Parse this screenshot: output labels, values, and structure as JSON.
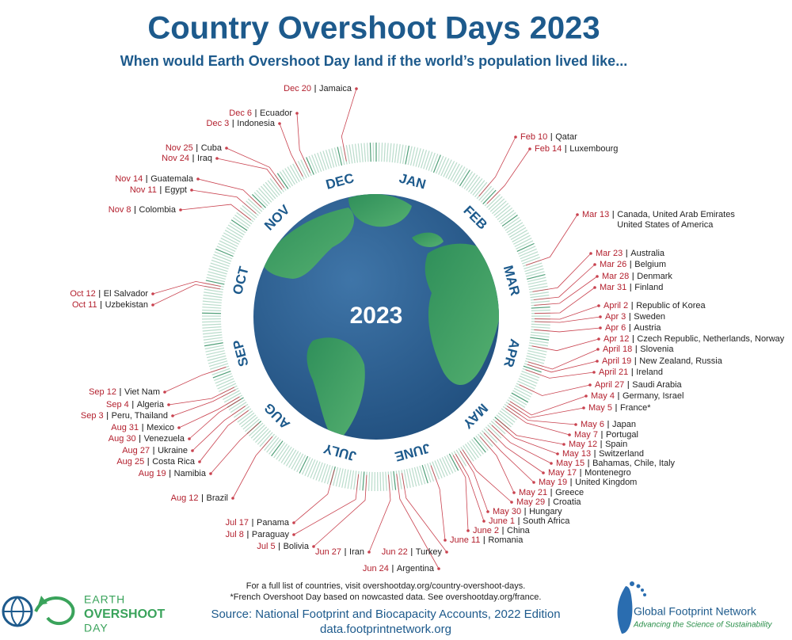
{
  "header": {
    "title": "Country Overshoot Days 2023",
    "subtitle": "When would Earth Overshoot Day land if the world’s population lived like..."
  },
  "ring": {
    "year": "2023",
    "months": [
      "JAN",
      "FEB",
      "MAR",
      "APR",
      "MAY",
      "JUNE",
      "JULY",
      "AUG",
      "SEP",
      "OCT",
      "NOV",
      "DEC"
    ]
  },
  "labels": [
    {
      "date": "Dec 20",
      "country": "Jamaica"
    },
    {
      "date": "Dec 6",
      "country": "Ecuador"
    },
    {
      "date": "Dec 3",
      "country": "Indonesia"
    },
    {
      "date": "Nov 25",
      "country": "Cuba"
    },
    {
      "date": "Nov 24",
      "country": "Iraq"
    },
    {
      "date": "Nov 14",
      "country": "Guatemala"
    },
    {
      "date": "Nov 11",
      "country": "Egypt"
    },
    {
      "date": "Nov 8",
      "country": "Colombia"
    },
    {
      "date": "Oct 12",
      "country": "El Salvador"
    },
    {
      "date": "Oct 11",
      "country": "Uzbekistan"
    },
    {
      "date": "Sep 12",
      "country": "Viet Nam"
    },
    {
      "date": "Sep 4",
      "country": "Algeria"
    },
    {
      "date": "Sep 3",
      "country": "Peru, Thailand"
    },
    {
      "date": "Aug 31",
      "country": "Mexico"
    },
    {
      "date": "Aug 30",
      "country": "Venezuela"
    },
    {
      "date": "Aug 27",
      "country": "Ukraine"
    },
    {
      "date": "Aug 25",
      "country": "Costa Rica"
    },
    {
      "date": "Aug 19",
      "country": "Namibia"
    },
    {
      "date": "Aug 12",
      "country": "Brazil"
    },
    {
      "date": "Jul 17",
      "country": "Panama"
    },
    {
      "date": "Jul 8",
      "country": "Paraguay"
    },
    {
      "date": "Jul 5",
      "country": "Bolivia"
    },
    {
      "date": "Jun 27",
      "country": "Iran"
    },
    {
      "date": "Jun 24",
      "country": "Argentina"
    },
    {
      "date": "Jun 22",
      "country": "Turkey"
    },
    {
      "date": "June 11",
      "country": "Romania"
    },
    {
      "date": "June 2",
      "country": "China"
    },
    {
      "date": "June 1",
      "country": "South Africa"
    },
    {
      "date": "May 30",
      "country": "Hungary"
    },
    {
      "date": "May 29",
      "country": "Croatia"
    },
    {
      "date": "May 21",
      "country": "Greece"
    },
    {
      "date": "May 19",
      "country": "United Kingdom"
    },
    {
      "date": "May 17",
      "country": "Montenegro"
    },
    {
      "date": "May 15",
      "country": "Bahamas, Chile, Italy"
    },
    {
      "date": "May 13",
      "country": "Switzerland"
    },
    {
      "date": "May 12",
      "country": "Spain"
    },
    {
      "date": "May 7",
      "country": "Portugal"
    },
    {
      "date": "May 6",
      "country": "Japan"
    },
    {
      "date": "May 5",
      "country": "France*"
    },
    {
      "date": "May 4",
      "country": "Germany, Israel"
    },
    {
      "date": "April 27",
      "country": "Saudi Arabia"
    },
    {
      "date": "April 21",
      "country": "Ireland"
    },
    {
      "date": "April 19",
      "country": "New Zealand, Russia"
    },
    {
      "date": "April 18",
      "country": "Slovenia"
    },
    {
      "date": "Apr 12",
      "country": "Czech Republic, Netherlands, Norway"
    },
    {
      "date": "Apr 6",
      "country": "Austria"
    },
    {
      "date": "Apr 3",
      "country": "Sweden"
    },
    {
      "date": "April 2",
      "country": "Republic of Korea"
    },
    {
      "date": "Mar 31",
      "country": "Finland"
    },
    {
      "date": "Mar 28",
      "country": "Denmark"
    },
    {
      "date": "Mar 26",
      "country": "Belgium"
    },
    {
      "date": "Mar 23",
      "country": "Australia"
    },
    {
      "date": "Mar 13",
      "country": "Canada, United Arab Emirates",
      "country_line2": "United States of America"
    },
    {
      "date": "Feb 14",
      "country": "Luxembourg"
    },
    {
      "date": "Feb 10",
      "country": "Qatar"
    }
  ],
  "footer": {
    "note1": "For a full list of countries, visit overshootday.org/country-overshoot-days.",
    "note2": "*French Overshoot Day based on nowcasted data. See overshootday.org/france.",
    "source": "Source: National Footprint and Biocapacity Accounts, 2022 Edition",
    "url": "data.footprintnetwork.org"
  },
  "logos": {
    "eod": [
      "EARTH",
      "OVERSHOOT",
      "DAY"
    ],
    "gfn_name": "Global Footprint Network",
    "gfn_tagline": "Advancing the Science of Sustainability"
  }
}
